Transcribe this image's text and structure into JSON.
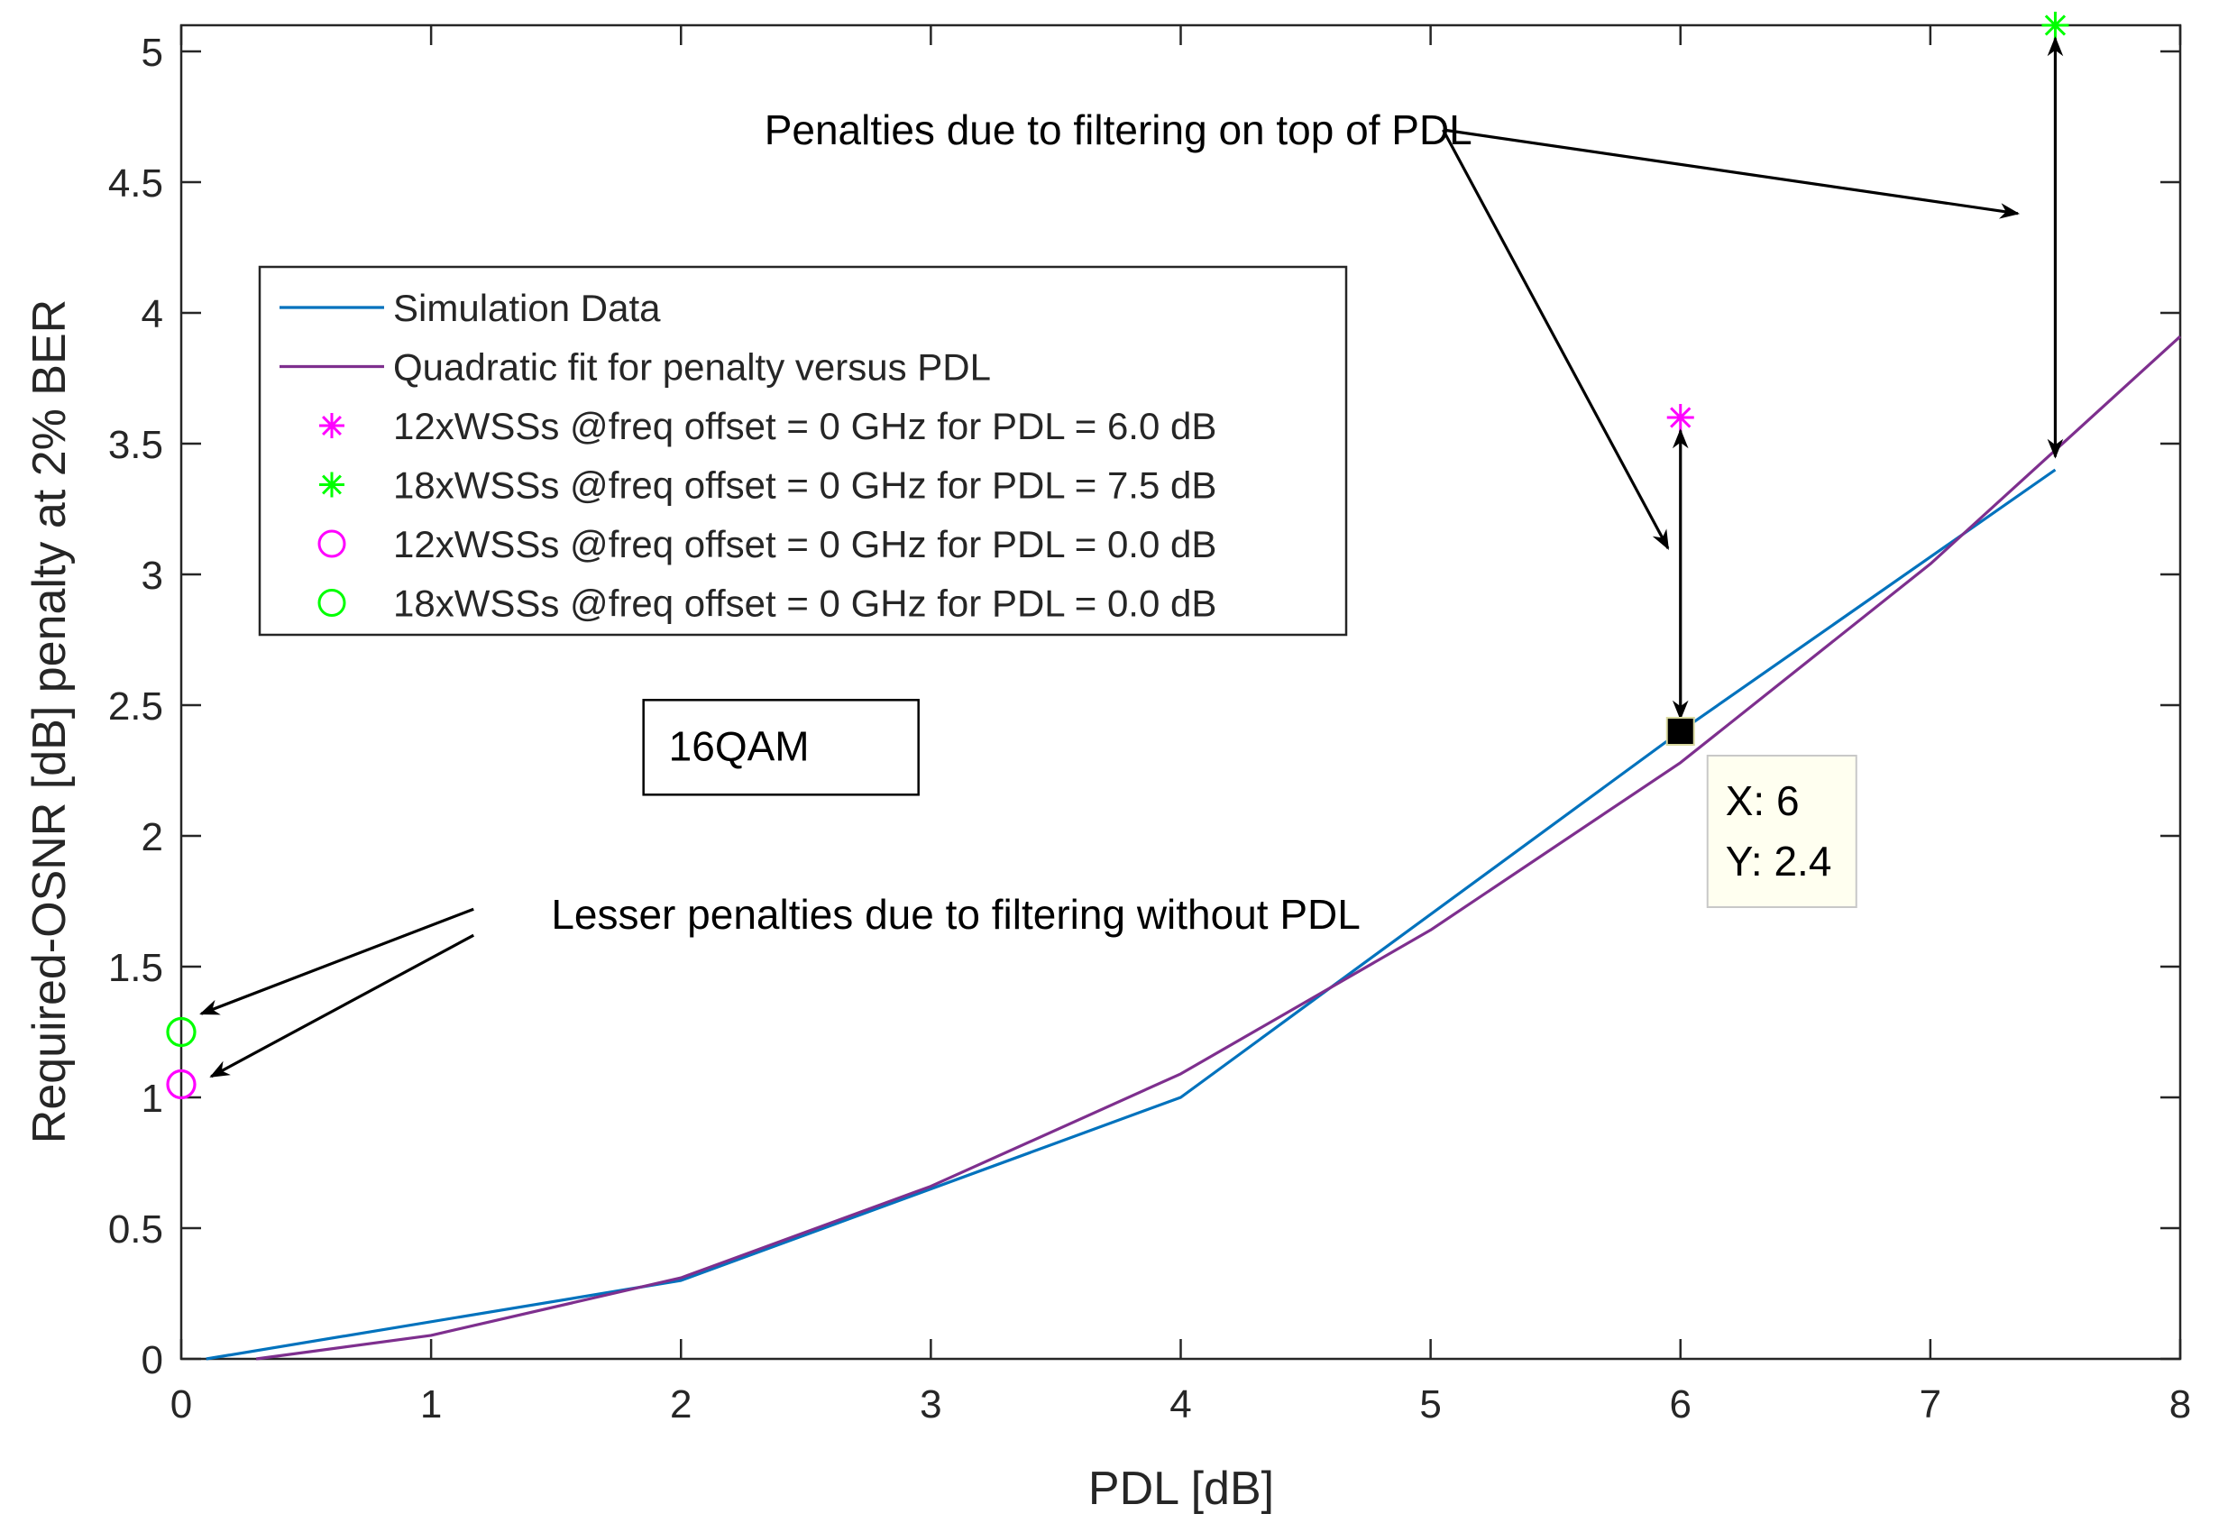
{
  "chart_data": {
    "type": "line",
    "xlabel": "PDL [dB]",
    "ylabel": "Required-OSNR [dB] penalty at 2% BER",
    "xlim": [
      0,
      8
    ],
    "ylim": [
      0,
      5.1
    ],
    "xticks": [
      0,
      1,
      2,
      3,
      4,
      5,
      6,
      7,
      8
    ],
    "xtick_labels": [
      "0",
      "1",
      "2",
      "3",
      "4",
      "5",
      "6",
      "7",
      "8"
    ],
    "yticks": [
      0,
      0.5,
      1,
      1.5,
      2,
      2.5,
      3,
      3.5,
      4,
      4.5,
      5
    ],
    "ytick_labels": [
      "0",
      "0.5",
      "1",
      "1.5",
      "2",
      "2.5",
      "3",
      "3.5",
      "4",
      "4.5",
      "5"
    ],
    "grid": false,
    "legend_position": "upper-left",
    "series": [
      {
        "name": "Simulation Data",
        "kind": "line",
        "color": "#0072BD",
        "x": [
          0.1,
          2,
          4,
          6,
          7.5
        ],
        "y": [
          0,
          0.3,
          1.0,
          2.4,
          3.4
        ]
      },
      {
        "name": "Quadratic fit for penalty versus PDL",
        "kind": "line",
        "color": "#7E2F8E",
        "x": [
          0.3,
          1,
          2,
          3,
          4,
          5,
          6,
          7,
          8
        ],
        "y": [
          0,
          0.09,
          0.31,
          0.66,
          1.09,
          1.64,
          2.28,
          3.04,
          3.91
        ]
      },
      {
        "name": "12xWSSs @freq offset = 0 GHz for PDL = 6.0 dB",
        "kind": "marker",
        "marker": "asterisk",
        "color": "#FF00FF",
        "x": [
          6
        ],
        "y": [
          3.6
        ]
      },
      {
        "name": "18xWSSs @freq offset = 0 GHz for PDL = 7.5 dB",
        "kind": "marker",
        "marker": "asterisk",
        "color": "#00FF00",
        "x": [
          7.5
        ],
        "y": [
          5.1
        ]
      },
      {
        "name": "12xWSSs @freq offset = 0 GHz for PDL = 0.0 dB",
        "kind": "marker",
        "marker": "circle",
        "color": "#FF00FF",
        "x": [
          0
        ],
        "y": [
          1.05
        ]
      },
      {
        "name": "18xWSSs @freq offset = 0 GHz for PDL = 0.0 dB",
        "kind": "marker",
        "marker": "circle",
        "color": "#00FF00",
        "x": [
          0
        ],
        "y": [
          1.25
        ]
      }
    ],
    "annotations": [
      {
        "text": "Penalties due to filtering on top of PDL",
        "anchor": [
          3.75,
          4.7
        ],
        "arrows": [
          {
            "from": [
              5.05,
              4.7
            ],
            "to": [
              5.95,
              3.1
            ]
          },
          {
            "from": [
              5.05,
              4.7
            ],
            "to": [
              7.35,
              4.38
            ]
          }
        ]
      },
      {
        "text": "Lesser penalties due to filtering without PDL",
        "anchor": [
          3.1,
          1.7
        ],
        "arrows": [
          {
            "from": [
              1.17,
              1.72
            ],
            "to": [
              0.08,
              1.32
            ]
          },
          {
            "from": [
              1.17,
              1.62
            ],
            "to": [
              0.12,
              1.08
            ]
          }
        ]
      }
    ],
    "double_arrows": [
      {
        "x": 6,
        "y1": 2.45,
        "y2": 3.55
      },
      {
        "x": 7.5,
        "y1": 3.45,
        "y2": 5.05
      }
    ],
    "text_box": {
      "text": "16QAM",
      "x": 1.85,
      "y": 2.33
    },
    "datatip": {
      "x": 6,
      "y": 2.4,
      "x_text": "X: 6",
      "y_text": "Y: 2.4"
    }
  }
}
